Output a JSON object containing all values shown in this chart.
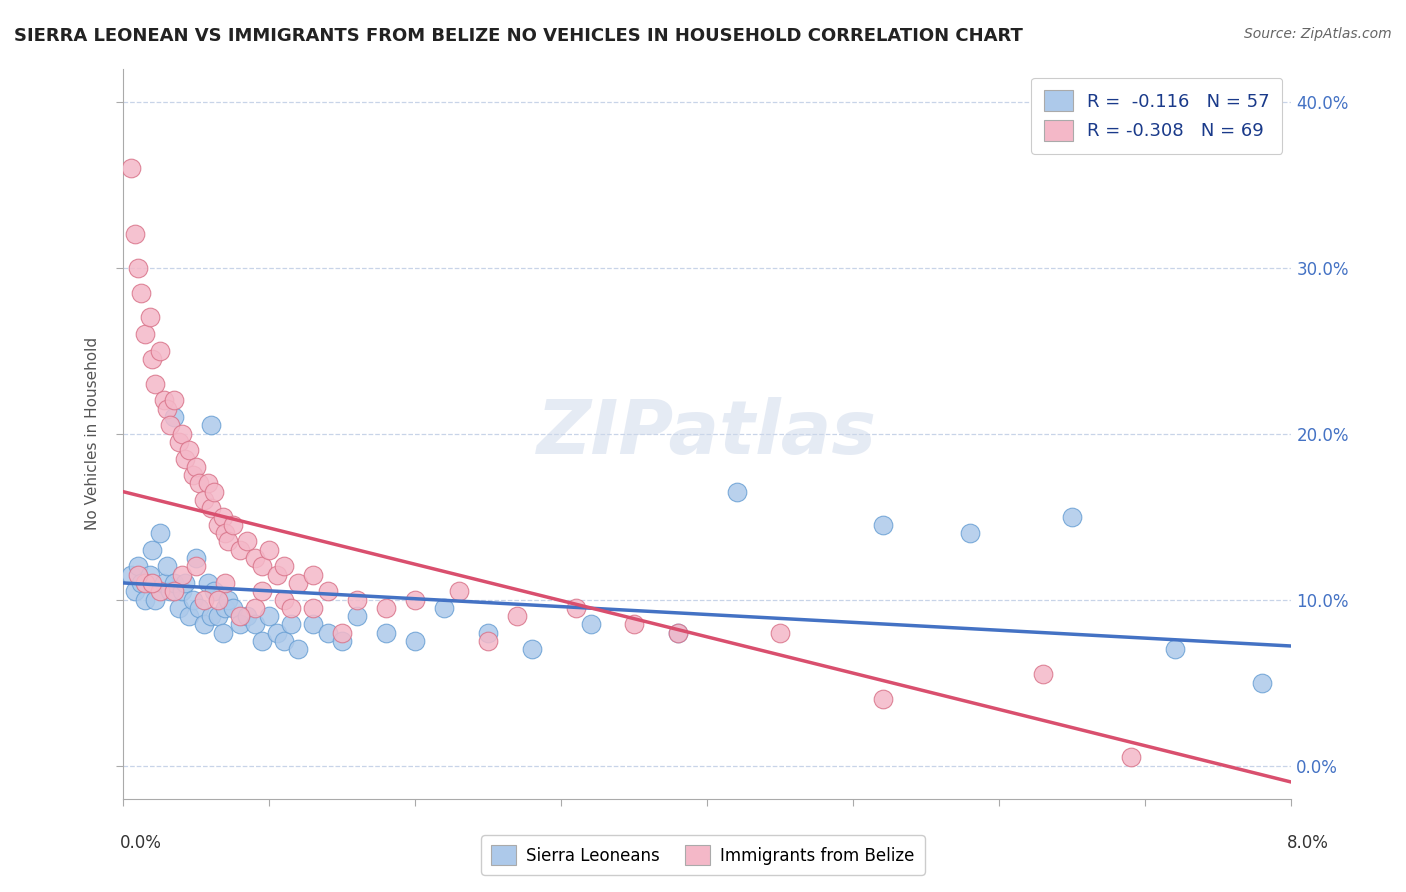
{
  "title": "SIERRA LEONEAN VS IMMIGRANTS FROM BELIZE NO VEHICLES IN HOUSEHOLD CORRELATION CHART",
  "source": "Source: ZipAtlas.com",
  "ylabel": "No Vehicles in Household",
  "xmin": 0.0,
  "xmax": 8.0,
  "ymin": -2.0,
  "ymax": 42.0,
  "yticks": [
    0,
    10,
    20,
    30,
    40
  ],
  "ytick_labels": [
    "0.0%",
    "10.0%",
    "20.0%",
    "30.0%",
    "40.0%"
  ],
  "series_blue": {
    "name": "Sierra Leoneans",
    "color": "#adc9ea",
    "edge_color": "#6aa0d4",
    "line_color": "#4472c4",
    "R": -0.116,
    "N": 57,
    "line_y0": 11.0,
    "line_y1": 7.2,
    "x": [
      0.05,
      0.08,
      0.1,
      0.12,
      0.15,
      0.18,
      0.2,
      0.22,
      0.25,
      0.28,
      0.3,
      0.32,
      0.35,
      0.38,
      0.4,
      0.42,
      0.45,
      0.48,
      0.5,
      0.52,
      0.55,
      0.58,
      0.6,
      0.62,
      0.65,
      0.68,
      0.7,
      0.72,
      0.75,
      0.8,
      0.85,
      0.9,
      0.95,
      1.0,
      1.05,
      1.1,
      1.15,
      1.2,
      1.3,
      1.4,
      1.5,
      1.6,
      1.8,
      2.0,
      2.2,
      2.5,
      2.8,
      3.2,
      3.8,
      4.2,
      5.2,
      5.8,
      6.5,
      7.2,
      7.8,
      0.35,
      0.6
    ],
    "y": [
      11.5,
      10.5,
      12.0,
      11.0,
      10.0,
      11.5,
      13.0,
      10.0,
      14.0,
      11.0,
      12.0,
      10.5,
      11.0,
      9.5,
      10.5,
      11.0,
      9.0,
      10.0,
      12.5,
      9.5,
      8.5,
      11.0,
      9.0,
      10.5,
      9.0,
      8.0,
      9.5,
      10.0,
      9.5,
      8.5,
      9.0,
      8.5,
      7.5,
      9.0,
      8.0,
      7.5,
      8.5,
      7.0,
      8.5,
      8.0,
      7.5,
      9.0,
      8.0,
      7.5,
      9.5,
      8.0,
      7.0,
      8.5,
      8.0,
      16.5,
      14.5,
      14.0,
      15.0,
      7.0,
      5.0,
      21.0,
      20.5
    ]
  },
  "series_pink": {
    "name": "Immigrants from Belize",
    "color": "#f4b8c8",
    "edge_color": "#d9748a",
    "line_color": "#d94f6e",
    "R": -0.308,
    "N": 69,
    "line_y0": 16.5,
    "line_y1": -1.0,
    "x": [
      0.05,
      0.08,
      0.1,
      0.12,
      0.15,
      0.18,
      0.2,
      0.22,
      0.25,
      0.28,
      0.3,
      0.32,
      0.35,
      0.38,
      0.4,
      0.42,
      0.45,
      0.48,
      0.5,
      0.52,
      0.55,
      0.58,
      0.6,
      0.62,
      0.65,
      0.68,
      0.7,
      0.72,
      0.75,
      0.8,
      0.85,
      0.9,
      0.95,
      1.0,
      1.05,
      1.1,
      1.2,
      1.3,
      1.4,
      1.6,
      1.8,
      2.0,
      2.3,
      2.7,
      3.1,
      3.5,
      0.15,
      0.25,
      0.4,
      0.55,
      0.7,
      0.9,
      1.1,
      1.3,
      3.8,
      4.5,
      5.2,
      6.3,
      6.9,
      0.1,
      0.2,
      0.35,
      0.5,
      0.65,
      0.8,
      0.95,
      1.15,
      1.5,
      2.5
    ],
    "y": [
      36.0,
      32.0,
      30.0,
      28.5,
      26.0,
      27.0,
      24.5,
      23.0,
      25.0,
      22.0,
      21.5,
      20.5,
      22.0,
      19.5,
      20.0,
      18.5,
      19.0,
      17.5,
      18.0,
      17.0,
      16.0,
      17.0,
      15.5,
      16.5,
      14.5,
      15.0,
      14.0,
      13.5,
      14.5,
      13.0,
      13.5,
      12.5,
      12.0,
      13.0,
      11.5,
      12.0,
      11.0,
      11.5,
      10.5,
      10.0,
      9.5,
      10.0,
      10.5,
      9.0,
      9.5,
      8.5,
      11.0,
      10.5,
      11.5,
      10.0,
      11.0,
      9.5,
      10.0,
      9.5,
      8.0,
      8.0,
      4.0,
      5.5,
      0.5,
      11.5,
      11.0,
      10.5,
      12.0,
      10.0,
      9.0,
      10.5,
      9.5,
      8.0,
      7.5
    ]
  },
  "watermark": "ZIPatlas",
  "background_color": "#ffffff",
  "grid_color": "#c8d4e8",
  "title_color": "#222222"
}
